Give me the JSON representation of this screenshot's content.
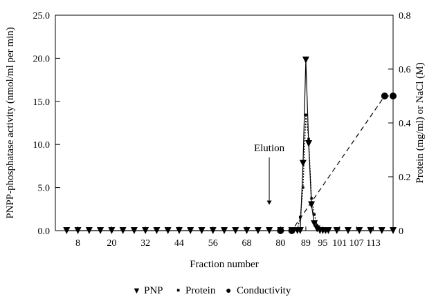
{
  "chart_data": {
    "type": "line",
    "xlabel": "Fraction number",
    "ylabel_left": "PNPP-phosphatase activity (nmol/ml per min)",
    "ylabel_right": "Protein (mg/ml) or NaCl (M)",
    "xlim": [
      0,
      120
    ],
    "ylim_left": [
      0,
      25
    ],
    "ylim_right": [
      0,
      0.8
    ],
    "x_ticks": [
      8,
      20,
      32,
      44,
      56,
      68,
      80,
      89,
      95,
      101,
      107,
      113
    ],
    "y_ticks_left": [
      0,
      5,
      10,
      15,
      20,
      25
    ],
    "y_ticks_left_labels": [
      "0.0",
      "5.0",
      "10.0",
      "15.0",
      "20.0",
      "25.0"
    ],
    "y_ticks_right": [
      0,
      0.2,
      0.4,
      0.6,
      0.8
    ],
    "y_ticks_right_labels": [
      "0",
      "0.2",
      "0.4",
      "0.6",
      "0.8"
    ],
    "grid": false,
    "legend_position": "bottom-center",
    "annotation": {
      "text": "Elution",
      "x": 76,
      "arrow_top": 8.5,
      "arrow_bottom": 3.0
    },
    "series": [
      {
        "name": "PNP",
        "axis": "left",
        "marker": "triangle-down",
        "line": "solid",
        "x": [
          4,
          8,
          12,
          16,
          20,
          24,
          28,
          32,
          36,
          40,
          44,
          48,
          52,
          56,
          60,
          64,
          68,
          72,
          76,
          80,
          84,
          86,
          87,
          88,
          89,
          90,
          91,
          92,
          93,
          94,
          95,
          96,
          97,
          100,
          104,
          108,
          112,
          116,
          120
        ],
        "values": [
          0,
          0,
          0,
          0,
          0,
          0,
          0,
          0,
          0,
          0,
          0,
          0,
          0,
          0,
          0,
          0,
          0,
          0,
          0,
          0,
          0,
          0,
          0,
          7.8,
          19.8,
          10.1,
          3.0,
          0.8,
          0.2,
          0,
          0,
          0,
          0,
          0,
          0,
          0,
          0,
          0,
          0
        ]
      },
      {
        "name": "Protein",
        "axis": "right",
        "marker": "square-small",
        "line": "dotted",
        "x": [
          84,
          86,
          87,
          88,
          89,
          90,
          91,
          92,
          93,
          94,
          95,
          96
        ],
        "values": [
          0,
          0.005,
          0.05,
          0.16,
          0.43,
          0.34,
          0.12,
          0.06,
          0.02,
          0.008,
          0.004,
          0
        ]
      },
      {
        "name": "Conductivity",
        "axis": "right",
        "marker": "circle",
        "line": "dashed",
        "x": [
          80,
          84,
          117,
          120
        ],
        "values": [
          0,
          0,
          0.5,
          0.5
        ]
      }
    ]
  },
  "legend": {
    "items": [
      {
        "symbol": "▼",
        "label": "PNP"
      },
      {
        "symbol": "▪",
        "label": "Protein"
      },
      {
        "symbol": "●",
        "label": "Conductivity"
      }
    ]
  }
}
